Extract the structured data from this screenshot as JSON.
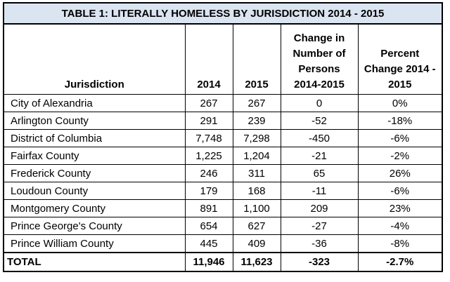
{
  "title": "TABLE 1: LITERALLY HOMELESS BY JURISDICTION 2014 - 2015",
  "headers": {
    "jurisdiction": "Jurisdiction",
    "y2014": "2014",
    "y2015": "2015",
    "change_lines": [
      "Change in",
      "Number of",
      "Persons",
      "2014-2015"
    ],
    "percent_lines": [
      "Percent",
      "Change 2014 -",
      "2015"
    ]
  },
  "rows": [
    [
      "City of Alexandria",
      "267",
      "267",
      "0",
      "0%"
    ],
    [
      "Arlington County",
      "291",
      "239",
      "-52",
      "-18%"
    ],
    [
      "District of Columbia",
      "7,748",
      "7,298",
      "-450",
      "-6%"
    ],
    [
      "Fairfax County",
      "1,225",
      "1,204",
      "-21",
      "-2%"
    ],
    [
      "Frederick County",
      "246",
      "311",
      "65",
      "26%"
    ],
    [
      "Loudoun County",
      "179",
      "168",
      "-11",
      "-6%"
    ],
    [
      "Montgomery County",
      "891",
      "1,100",
      "209",
      "23%"
    ],
    [
      "Prince George's County",
      "654",
      "627",
      "-27",
      "-4%"
    ],
    [
      "Prince William County",
      "445",
      "409",
      "-36",
      "-8%"
    ]
  ],
  "total": [
    "TOTAL",
    "11,946",
    "11,623",
    "-323",
    "-2.7%"
  ]
}
